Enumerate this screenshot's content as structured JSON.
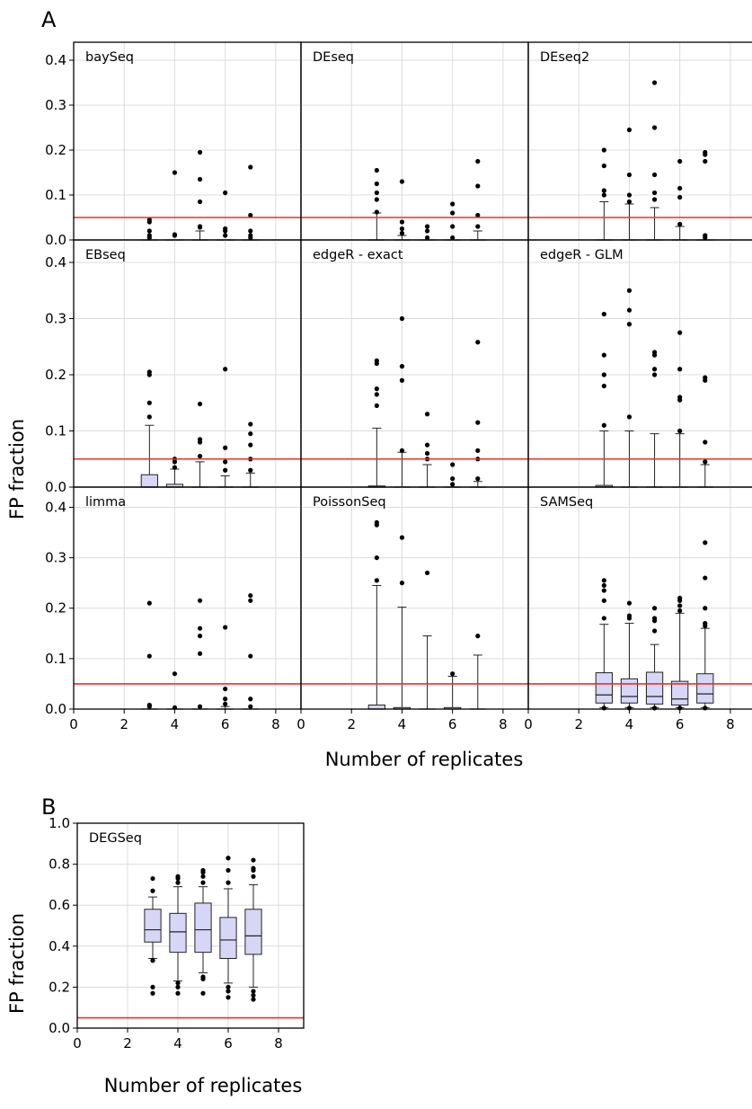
{
  "panel_labels": {
    "a": "A",
    "b": "B"
  },
  "chart_data": [
    {
      "type": "box",
      "panel": "A",
      "xlabel": "Number of replicates",
      "ylabel": "FP fraction",
      "xlim": [
        0,
        9
      ],
      "ylim": [
        0,
        0.44
      ],
      "xticks": [
        0,
        2,
        4,
        6,
        8
      ],
      "yticks": [
        0.0,
        0.1,
        0.2,
        0.3,
        0.4
      ],
      "xtick_labels": [
        "0",
        "2",
        "4",
        "6",
        "8"
      ],
      "ytick_labels": [
        "0.0",
        "0.1",
        "0.2",
        "0.3",
        "0.4"
      ],
      "reference_line": 0.05,
      "reference_color": "#e8302c",
      "box_color": "#d6d6f7",
      "grid": true,
      "facets": [
        {
          "name": "baySeq",
          "boxes": [
            {
              "x": 3,
              "q1": 0,
              "median": 0,
              "q3": 0,
              "whislo": 0,
              "whishi": 0,
              "fliers": [
                0.005,
                0.01,
                0.02,
                0.04,
                0.045
              ]
            },
            {
              "x": 4,
              "q1": 0,
              "median": 0,
              "q3": 0,
              "whislo": 0,
              "whishi": 0,
              "fliers": [
                0.01,
                0.012,
                0.15
              ]
            },
            {
              "x": 5,
              "q1": 0,
              "median": 0,
              "q3": 0,
              "whislo": 0,
              "whishi": 0.02,
              "fliers": [
                0.028,
                0.03,
                0.085,
                0.135,
                0.195
              ]
            },
            {
              "x": 6,
              "q1": 0,
              "median": 0,
              "q3": 0,
              "whislo": 0,
              "whishi": 0,
              "fliers": [
                0.01,
                0.02,
                0.025,
                0.105
              ]
            },
            {
              "x": 7,
              "q1": 0,
              "median": 0,
              "q3": 0,
              "whislo": 0,
              "whishi": 0,
              "fliers": [
                0.005,
                0.01,
                0.02,
                0.055,
                0.162
              ]
            }
          ]
        },
        {
          "name": "DEseq",
          "boxes": [
            {
              "x": 3,
              "q1": 0,
              "median": 0,
              "q3": 0,
              "whislo": 0,
              "whishi": 0.06,
              "fliers": [
                0.062,
                0.09,
                0.105,
                0.125,
                0.155
              ]
            },
            {
              "x": 4,
              "q1": 0,
              "median": 0,
              "q3": 0,
              "whislo": 0,
              "whishi": 0.01,
              "fliers": [
                0.015,
                0.025,
                0.04,
                0.13
              ]
            },
            {
              "x": 5,
              "q1": 0,
              "median": 0,
              "q3": 0,
              "whislo": 0,
              "whishi": 0,
              "fliers": [
                0.005,
                0.02,
                0.03
              ]
            },
            {
              "x": 6,
              "q1": 0,
              "median": 0,
              "q3": 0,
              "whislo": 0,
              "whishi": 0,
              "fliers": [
                0.005,
                0.03,
                0.06,
                0.08
              ]
            },
            {
              "x": 7,
              "q1": 0,
              "median": 0,
              "q3": 0,
              "whislo": 0,
              "whishi": 0.02,
              "fliers": [
                0.03,
                0.055,
                0.12,
                0.175
              ]
            }
          ]
        },
        {
          "name": "DEseq2",
          "boxes": [
            {
              "x": 3,
              "q1": 0,
              "median": 0,
              "q3": 0,
              "whislo": 0,
              "whishi": 0.085,
              "fliers": [
                0.1,
                0.11,
                0.165,
                0.2
              ]
            },
            {
              "x": 4,
              "q1": 0,
              "median": 0,
              "q3": 0,
              "whislo": 0,
              "whishi": 0.08,
              "fliers": [
                0.085,
                0.1,
                0.145,
                0.245
              ]
            },
            {
              "x": 5,
              "q1": 0,
              "median": 0,
              "q3": 0,
              "whislo": 0,
              "whishi": 0.072,
              "fliers": [
                0.09,
                0.105,
                0.145,
                0.25,
                0.35
              ]
            },
            {
              "x": 6,
              "q1": 0,
              "median": 0,
              "q3": 0,
              "whislo": 0,
              "whishi": 0.03,
              "fliers": [
                0.035,
                0.095,
                0.115,
                0.175
              ]
            },
            {
              "x": 7,
              "q1": 0,
              "median": 0,
              "q3": 0,
              "whislo": 0,
              "whishi": 0,
              "fliers": [
                0.005,
                0.01,
                0.175,
                0.19,
                0.195
              ]
            }
          ]
        },
        {
          "name": "EBseq",
          "boxes": [
            {
              "x": 3,
              "q1": 0,
              "median": 0,
              "q3": 0.022,
              "whislo": 0,
              "whishi": 0.11,
              "fliers": [
                0.125,
                0.15,
                0.2,
                0.205
              ]
            },
            {
              "x": 4,
              "q1": 0,
              "median": 0,
              "q3": 0.005,
              "whislo": 0,
              "whishi": 0.032,
              "fliers": [
                0.035,
                0.045,
                0.05
              ]
            },
            {
              "x": 5,
              "q1": 0,
              "median": 0,
              "q3": 0,
              "whislo": 0,
              "whishi": 0.045,
              "fliers": [
                0.055,
                0.08,
                0.085,
                0.148
              ]
            },
            {
              "x": 6,
              "q1": 0,
              "median": 0,
              "q3": 0,
              "whislo": 0,
              "whishi": 0.02,
              "fliers": [
                0.03,
                0.045,
                0.07,
                0.21
              ]
            },
            {
              "x": 7,
              "q1": 0,
              "median": 0,
              "q3": 0,
              "whislo": 0,
              "whishi": 0.025,
              "fliers": [
                0.03,
                0.05,
                0.075,
                0.095,
                0.112
              ]
            }
          ]
        },
        {
          "name": "edgeR - exact",
          "boxes": [
            {
              "x": 3,
              "q1": 0,
              "median": 0,
              "q3": 0.002,
              "whislo": 0,
              "whishi": 0.105,
              "fliers": [
                0.145,
                0.165,
                0.175,
                0.22,
                0.225
              ]
            },
            {
              "x": 4,
              "q1": 0,
              "median": 0,
              "q3": 0,
              "whislo": 0,
              "whishi": 0.062,
              "fliers": [
                0.065,
                0.19,
                0.215,
                0.3
              ]
            },
            {
              "x": 5,
              "q1": 0,
              "median": 0,
              "q3": 0,
              "whislo": 0,
              "whishi": 0.04,
              "fliers": [
                0.05,
                0.06,
                0.075,
                0.13
              ]
            },
            {
              "x": 6,
              "q1": 0,
              "median": 0,
              "q3": 0,
              "whislo": 0,
              "whishi": 0,
              "fliers": [
                0.005,
                0.015,
                0.04
              ]
            },
            {
              "x": 7,
              "q1": 0,
              "median": 0,
              "q3": 0,
              "whislo": 0,
              "whishi": 0.01,
              "fliers": [
                0.015,
                0.05,
                0.065,
                0.115,
                0.258
              ]
            }
          ]
        },
        {
          "name": "edgeR - GLM",
          "boxes": [
            {
              "x": 3,
              "q1": 0,
              "median": 0,
              "q3": 0.003,
              "whislo": 0,
              "whishi": 0.1,
              "fliers": [
                0.11,
                0.18,
                0.2,
                0.235,
                0.308
              ]
            },
            {
              "x": 4,
              "q1": 0,
              "median": 0,
              "q3": 0,
              "whislo": 0,
              "whishi": 0.1,
              "fliers": [
                0.125,
                0.29,
                0.315,
                0.35
              ]
            },
            {
              "x": 5,
              "q1": 0,
              "median": 0,
              "q3": 0,
              "whislo": 0,
              "whishi": 0.095,
              "fliers": [
                0.2,
                0.21,
                0.235,
                0.24
              ]
            },
            {
              "x": 6,
              "q1": 0,
              "median": 0,
              "q3": 0,
              "whislo": 0,
              "whishi": 0.095,
              "fliers": [
                0.1,
                0.155,
                0.16,
                0.21,
                0.275
              ]
            },
            {
              "x": 7,
              "q1": 0,
              "median": 0,
              "q3": 0,
              "whislo": 0,
              "whishi": 0.04,
              "fliers": [
                0.045,
                0.08,
                0.19,
                0.195
              ]
            }
          ]
        },
        {
          "name": "limma",
          "boxes": [
            {
              "x": 3,
              "q1": 0,
              "median": 0,
              "q3": 0,
              "whislo": 0,
              "whishi": 0,
              "fliers": [
                0.005,
                0.008,
                0.105,
                0.21
              ]
            },
            {
              "x": 4,
              "q1": 0,
              "median": 0,
              "q3": 0,
              "whislo": 0,
              "whishi": 0,
              "fliers": [
                0.003,
                0.07
              ]
            },
            {
              "x": 5,
              "q1": 0,
              "median": 0,
              "q3": 0,
              "whislo": 0,
              "whishi": 0,
              "fliers": [
                0.005,
                0.11,
                0.145,
                0.16,
                0.215
              ]
            },
            {
              "x": 6,
              "q1": 0,
              "median": 0,
              "q3": 0,
              "whislo": 0,
              "whishi": 0.005,
              "fliers": [
                0.01,
                0.02,
                0.04,
                0.162
              ]
            },
            {
              "x": 7,
              "q1": 0,
              "median": 0,
              "q3": 0,
              "whislo": 0,
              "whishi": 0,
              "fliers": [
                0.005,
                0.02,
                0.105,
                0.215,
                0.225
              ]
            }
          ]
        },
        {
          "name": "PoissonSeq",
          "boxes": [
            {
              "x": 3,
              "q1": 0,
              "median": 0,
              "q3": 0.008,
              "whislo": 0,
              "whishi": 0.245,
              "fliers": [
                0.255,
                0.3,
                0.365,
                0.37
              ]
            },
            {
              "x": 4,
              "q1": 0,
              "median": 0,
              "q3": 0.003,
              "whislo": 0,
              "whishi": 0.202,
              "fliers": [
                0.25,
                0.34
              ]
            },
            {
              "x": 5,
              "q1": 0,
              "median": 0,
              "q3": 0,
              "whislo": 0,
              "whishi": 0.145,
              "fliers": [
                0.27
              ]
            },
            {
              "x": 6,
              "q1": 0,
              "median": 0,
              "q3": 0.003,
              "whislo": 0,
              "whishi": 0.065,
              "fliers": [
                0.07
              ]
            },
            {
              "x": 7,
              "q1": 0,
              "median": 0,
              "q3": 0,
              "whislo": 0,
              "whishi": 0.107,
              "fliers": [
                0.145
              ]
            }
          ]
        },
        {
          "name": "SAMSeq",
          "boxes": [
            {
              "x": 3,
              "q1": 0.012,
              "median": 0.028,
              "q3": 0.072,
              "whislo": 0.003,
              "whishi": 0.168,
              "fliers": [
                0.002,
                0.18,
                0.215,
                0.235,
                0.245,
                0.255
              ]
            },
            {
              "x": 4,
              "q1": 0.012,
              "median": 0.025,
              "q3": 0.06,
              "whislo": 0.003,
              "whishi": 0.17,
              "fliers": [
                0.002,
                0.18,
                0.185,
                0.21
              ]
            },
            {
              "x": 5,
              "q1": 0.01,
              "median": 0.025,
              "q3": 0.073,
              "whislo": 0.003,
              "whishi": 0.128,
              "fliers": [
                0.002,
                0.155,
                0.175,
                0.18,
                0.2
              ]
            },
            {
              "x": 6,
              "q1": 0.008,
              "median": 0.02,
              "q3": 0.055,
              "whislo": 0.003,
              "whishi": 0.19,
              "fliers": [
                0.002,
                0.195,
                0.205,
                0.215,
                0.22
              ]
            },
            {
              "x": 7,
              "q1": 0.012,
              "median": 0.03,
              "q3": 0.07,
              "whislo": 0.003,
              "whishi": 0.16,
              "fliers": [
                0.002,
                0.165,
                0.17,
                0.2,
                0.26,
                0.33
              ]
            }
          ]
        }
      ]
    },
    {
      "type": "box",
      "panel": "B",
      "xlabel": "Number of replicates",
      "ylabel": "FP fraction",
      "xlim": [
        0,
        9
      ],
      "ylim": [
        0,
        1.0
      ],
      "xticks": [
        0,
        2,
        4,
        6,
        8
      ],
      "yticks": [
        0.0,
        0.2,
        0.4,
        0.6,
        0.8,
        1.0
      ],
      "xtick_labels": [
        "0",
        "2",
        "4",
        "6",
        "8"
      ],
      "ytick_labels": [
        "0.0",
        "0.2",
        "0.4",
        "0.6",
        "0.8",
        "1.0"
      ],
      "reference_line": 0.05,
      "reference_color": "#e8302c",
      "box_color": "#d6d6f7",
      "grid": true,
      "facets": [
        {
          "name": "DEGSeq",
          "boxes": [
            {
              "x": 3,
              "q1": 0.42,
              "median": 0.48,
              "q3": 0.58,
              "whislo": 0.34,
              "whishi": 0.64,
              "fliers": [
                0.17,
                0.2,
                0.33,
                0.67,
                0.73
              ]
            },
            {
              "x": 4,
              "q1": 0.37,
              "median": 0.47,
              "q3": 0.56,
              "whislo": 0.23,
              "whishi": 0.69,
              "fliers": [
                0.17,
                0.2,
                0.22,
                0.71,
                0.73,
                0.74
              ]
            },
            {
              "x": 5,
              "q1": 0.37,
              "median": 0.48,
              "q3": 0.61,
              "whislo": 0.27,
              "whishi": 0.69,
              "fliers": [
                0.17,
                0.24,
                0.25,
                0.71,
                0.74,
                0.76,
                0.77
              ]
            },
            {
              "x": 6,
              "q1": 0.34,
              "median": 0.43,
              "q3": 0.54,
              "whislo": 0.22,
              "whishi": 0.68,
              "fliers": [
                0.15,
                0.18,
                0.2,
                0.71,
                0.77,
                0.83
              ]
            },
            {
              "x": 7,
              "q1": 0.36,
              "median": 0.45,
              "q3": 0.58,
              "whislo": 0.2,
              "whishi": 0.7,
              "fliers": [
                0.14,
                0.16,
                0.18,
                0.74,
                0.77,
                0.78,
                0.82
              ]
            }
          ]
        }
      ]
    }
  ]
}
